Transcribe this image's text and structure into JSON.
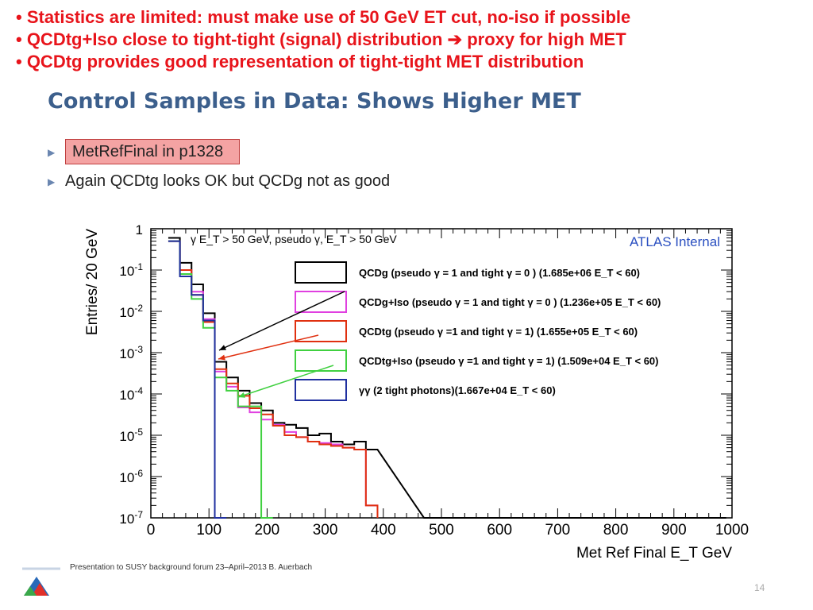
{
  "bullets": [
    "• Statistics are limited: must make use of 50 GeV ET cut, no-iso if possible",
    "• QCDtg+Iso close to tight-tight (signal) distribution",
    "proxy for high MET",
    "• QCDtg provides good representation of tight-tight MET distribution"
  ],
  "slide_title": "Control Samples in Data: Shows Higher MET",
  "sub_bullets": [
    "MetRefFinal in p1328",
    "Again QCDtg looks OK but QCDg not as good"
  ],
  "footer": "Presentation to SUSY background forum 23–April–2013 B. Auerbach",
  "page_number": "14",
  "colors": {
    "bullet_red": "#e8141b",
    "title_blue": "#3c5f8c",
    "highlight": "#f4a3a3",
    "atlas_blue": "#2a4fc0"
  },
  "chart_data": {
    "type": "line",
    "x_scale": "linear",
    "y_scale": "log",
    "xlim": [
      0,
      1000
    ],
    "ylim": [
      1e-07,
      1
    ],
    "xlabel": "Met Ref Final  E_T GeV",
    "ylabel": "Entries/ 20 GeV",
    "x_ticks": [
      "0",
      "100",
      "200",
      "300",
      "400",
      "500",
      "600",
      "700",
      "800",
      "900",
      "1000"
    ],
    "y_ticks": [
      "1",
      "10-1",
      "10-2",
      "10-3",
      "10-4",
      "10-5",
      "10-6",
      "10-7"
    ],
    "annotation": "γ E_T > 50 GeV, pseudo γ, E_T > 50 GeV",
    "atlas_label": "ATLAS Internal",
    "bin_width": 20,
    "series": [
      {
        "name": "QCDg (pseudo γ = 1 and tight γ = 0 ) (1.685e+06  E_T < 60)",
        "color": "#000000",
        "x": [
          40,
          60,
          80,
          100,
          120,
          140,
          160,
          180,
          200,
          220,
          240,
          260,
          280,
          300,
          320,
          340,
          360,
          380,
          480,
          560,
          640,
          720,
          880,
          980
        ],
        "y": [
          0.6,
          0.15,
          0.045,
          0.009,
          0.0006,
          0.00025,
          0.00012,
          6e-05,
          4e-05,
          2e-05,
          1.8e-05,
          1.5e-05,
          1e-05,
          1.1e-05,
          7e-06,
          6e-06,
          7e-06,
          4.5e-06,
          1e-07,
          0,
          1e-07,
          0,
          0,
          1e-07
        ]
      },
      {
        "name": "QCDg+Iso (pseudo γ = 1 and tight γ = 0 ) (1.236e+05  E_T < 60)",
        "color": "#e040e0",
        "x": [
          40,
          60,
          80,
          100,
          120,
          140,
          160,
          180,
          200,
          220,
          240,
          260,
          280,
          300,
          320,
          340,
          360,
          380
        ],
        "y": [
          0.5,
          0.1,
          0.03,
          0.0065,
          0.00035,
          0.00015,
          4.7e-05,
          3.6e-05,
          2.4e-05,
          1.8e-05,
          1.2e-05,
          9e-06,
          7e-06,
          6.5e-06,
          6e-06,
          5e-06,
          4.5e-06,
          2e-07
        ]
      },
      {
        "name": "QCDtg (pseudo γ =1 and tight γ = 1)  (1.655e+05  E_T < 60)",
        "color": "#e03010",
        "x": [
          40,
          60,
          80,
          100,
          120,
          140,
          160,
          180,
          200,
          220,
          240,
          260,
          280,
          300,
          320,
          340,
          360,
          380
        ],
        "y": [
          0.5,
          0.1,
          0.025,
          0.0055,
          0.0004,
          0.00018,
          9e-05,
          4.5e-05,
          3.2e-05,
          1.7e-05,
          1e-05,
          9e-06,
          7e-06,
          6e-06,
          5.5e-06,
          5e-06,
          4.5e-06,
          2e-07
        ]
      },
      {
        "name": "QCDtg+Iso (pseudo γ =1 and tight γ = 1) (1.509e+04  E_T < 60)",
        "color": "#40d040",
        "x": [
          40,
          60,
          80,
          100,
          120,
          140,
          160,
          180,
          200
        ],
        "y": [
          0.5,
          0.08,
          0.02,
          0.004,
          0.00025,
          0.00012,
          5e-05,
          5e-05,
          1e-07
        ]
      },
      {
        "name": "γγ (2 tight photons)(1.667e+04  E_T < 60)",
        "color": "#2030a0",
        "x": [
          40,
          60,
          80,
          100,
          120
        ],
        "y": [
          0.5,
          0.07,
          0.025,
          0.006,
          1e-07
        ]
      }
    ]
  }
}
